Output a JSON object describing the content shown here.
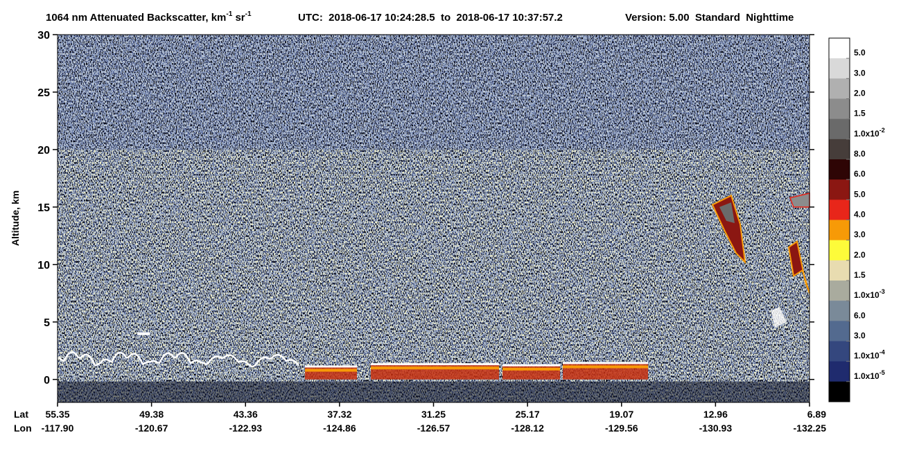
{
  "chart_data": {
    "type": "heatmap",
    "title_parts": [
      {
        "text": "1064 nm Attenuated Backscatter, km",
        "sup": "-1"
      },
      {
        "text": " sr",
        "sup": "-1"
      }
    ],
    "time_range": "UTC:  2018-06-17 10:24:28.5  to  2018-06-17 10:37:57.2",
    "version": "Version: 5.00  Standard  Nighttime",
    "y_label": "Altitude, km",
    "ylim": [
      -2,
      30
    ],
    "yticks": [
      0,
      5,
      10,
      15,
      20,
      25,
      30
    ],
    "lat_title": "Lat",
    "lon_title": "Lon",
    "lat_labels": [
      "55.35",
      "49.38",
      "43.36",
      "37.32",
      "31.25",
      "25.17",
      "19.07",
      "12.96",
      "6.89"
    ],
    "lon_labels": [
      "-117.90",
      "-120.67",
      "-122.93",
      "-124.86",
      "-126.57",
      "-128.12",
      "-129.56",
      "-130.93",
      "-132.25"
    ],
    "colorbar": {
      "colors": [
        "#ffffff",
        "#d9d9d9",
        "#b0b0b0",
        "#8c8c8c",
        "#6a6a6a",
        "#463d3a",
        "#2e0505",
        "#8b1712",
        "#e8261a",
        "#f79a07",
        "#fdfb3a",
        "#e8dcb0",
        "#a9ab9e",
        "#7a8a99",
        "#536a8f",
        "#34477e",
        "#1f2b6e",
        "#000000"
      ],
      "labels": [
        {
          "text": "5.0"
        },
        {
          "text": "3.0"
        },
        {
          "text": "2.0"
        },
        {
          "text": "1.5"
        },
        {
          "text": "1.0x10",
          "sup": "-2"
        },
        {
          "text": "8.0"
        },
        {
          "text": "6.0"
        },
        {
          "text": "5.0"
        },
        {
          "text": "4.0"
        },
        {
          "text": "3.0"
        },
        {
          "text": "2.0"
        },
        {
          "text": "1.5"
        },
        {
          "text": "1.0x10",
          "sup": "-3"
        },
        {
          "text": "6.0"
        },
        {
          "text": "3.0"
        },
        {
          "text": "1.0x10",
          "sup": "-4"
        },
        {
          "text": "1.0x10",
          "sup": "-5"
        }
      ]
    }
  }
}
